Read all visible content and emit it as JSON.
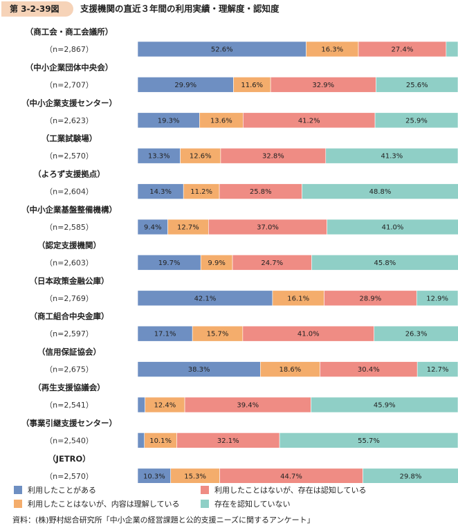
{
  "figure": {
    "number": "第 3-2-39図",
    "title": "支援機関の直近３年間の利用実績・理解度・認知度"
  },
  "colors": {
    "used": "#6e8fc2",
    "understood": "#f4ad6c",
    "known": "#ef8c84",
    "unknown": "#8fcfc6"
  },
  "legend": {
    "used": "利用したことがある",
    "understood": "利用したことはないが、内容は理解している",
    "known": "利用したことはないが、存在は認知している",
    "unknown": "存在を認知していない"
  },
  "source": "資料：(株)野村総合研究所「中小企業の経営課題と公的支援ニーズに関するアンケート」",
  "chart_data": {
    "type": "bar",
    "orientation": "horizontal",
    "stacked": true,
    "unit": "%",
    "categories": [
      "（商工会・商工会議所）",
      "（中小企業団体中央会）",
      "（中小企業支援センター）",
      "（工業試験場）",
      "（よろず支援拠点）",
      "（中小企業基盤整備機構）",
      "（認定支援機関）",
      "（日本政策金融公庫）",
      "（商工組合中央金庫）",
      "（信用保証協会）",
      "（再生支援協議会）",
      "（事業引継支援センター）",
      "（JETRO）"
    ],
    "sample_sizes": [
      "（n=2,867）",
      "（n=2,707）",
      "（n=2,623）",
      "（n=2,570）",
      "（n=2,604）",
      "（n=2,585）",
      "（n=2,603）",
      "（n=2,769）",
      "（n=2,597）",
      "（n=2,675）",
      "（n=2,541）",
      "（n=2,540）",
      "（n=2,570）"
    ],
    "series": [
      {
        "name": "利用したことがある",
        "key": "used",
        "values": [
          52.6,
          29.9,
          19.3,
          13.3,
          14.3,
          9.4,
          19.7,
          42.1,
          17.1,
          38.3,
          2.3,
          2.1,
          10.3
        ],
        "labels": [
          "52.6%",
          "29.9%",
          "19.3%",
          "13.3%",
          "14.3%",
          "9.4%",
          "19.7%",
          "42.1%",
          "17.1%",
          "38.3%",
          "",
          "",
          "10.3%"
        ]
      },
      {
        "name": "利用したことはないが、内容は理解している",
        "key": "understood",
        "values": [
          16.3,
          11.6,
          13.6,
          12.6,
          11.2,
          12.7,
          9.9,
          16.1,
          15.7,
          18.6,
          12.4,
          10.1,
          15.3
        ],
        "labels": [
          "16.3%",
          "11.6%",
          "13.6%",
          "12.6%",
          "11.2%",
          "12.7%",
          "9.9%",
          "16.1%",
          "15.7%",
          "18.6%",
          "12.4%",
          "10.1%",
          "15.3%"
        ]
      },
      {
        "name": "利用したことはないが、存在は認知している",
        "key": "known",
        "values": [
          27.4,
          32.9,
          41.2,
          32.8,
          25.8,
          37.0,
          24.7,
          28.9,
          41.0,
          30.4,
          39.4,
          32.1,
          44.7
        ],
        "labels": [
          "27.4%",
          "32.9%",
          "41.2%",
          "32.8%",
          "25.8%",
          "37.0%",
          "24.7%",
          "28.9%",
          "41.0%",
          "30.4%",
          "39.4%",
          "32.1%",
          "44.7%"
        ]
      },
      {
        "name": "存在を認知していない",
        "key": "unknown",
        "values": [
          3.7,
          25.6,
          25.9,
          41.3,
          48.8,
          41.0,
          45.8,
          12.9,
          26.3,
          12.7,
          45.9,
          55.7,
          29.8
        ],
        "labels": [
          "",
          "25.6%",
          "25.9%",
          "41.3%",
          "48.8%",
          "41.0%",
          "45.8%",
          "12.9%",
          "26.3%",
          "12.7%",
          "45.9%",
          "55.7%",
          "29.8%"
        ]
      }
    ],
    "xlim": [
      0,
      100
    ],
    "legend_position": "bottom"
  }
}
